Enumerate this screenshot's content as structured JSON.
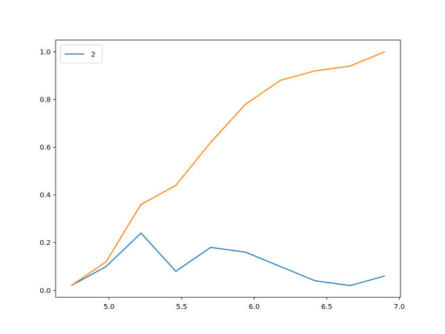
{
  "chart_data": {
    "type": "line",
    "x": [
      4.74,
      4.98,
      5.22,
      5.46,
      5.7,
      5.94,
      6.18,
      6.42,
      6.66,
      6.9
    ],
    "series": [
      {
        "name": "2",
        "color": "#1f77b4",
        "values": [
          0.02,
          0.1,
          0.24,
          0.08,
          0.18,
          0.16,
          0.1,
          0.04,
          0.02,
          0.06
        ]
      },
      {
        "color": "#ff7f0e",
        "values": [
          0.02,
          0.12,
          0.36,
          0.44,
          0.62,
          0.78,
          0.88,
          0.92,
          0.94,
          1.0
        ]
      }
    ],
    "xlim": [
      4.632,
      7.008
    ],
    "xticks": [
      {
        "value": 5,
        "label": "5.0"
      },
      5.5,
      {
        "value": 6,
        "label": "6.0"
      },
      6.5,
      {
        "value": 7,
        "label": "7.0"
      }
    ],
    "ylim": [
      -0.029,
      1.049
    ],
    "yticks": [
      {
        "value": 0,
        "label": "0.0"
      },
      0.2,
      0.4,
      0.6,
      0.8,
      {
        "value": 1,
        "label": "1.0"
      }
    ],
    "legend": "upper left"
  }
}
